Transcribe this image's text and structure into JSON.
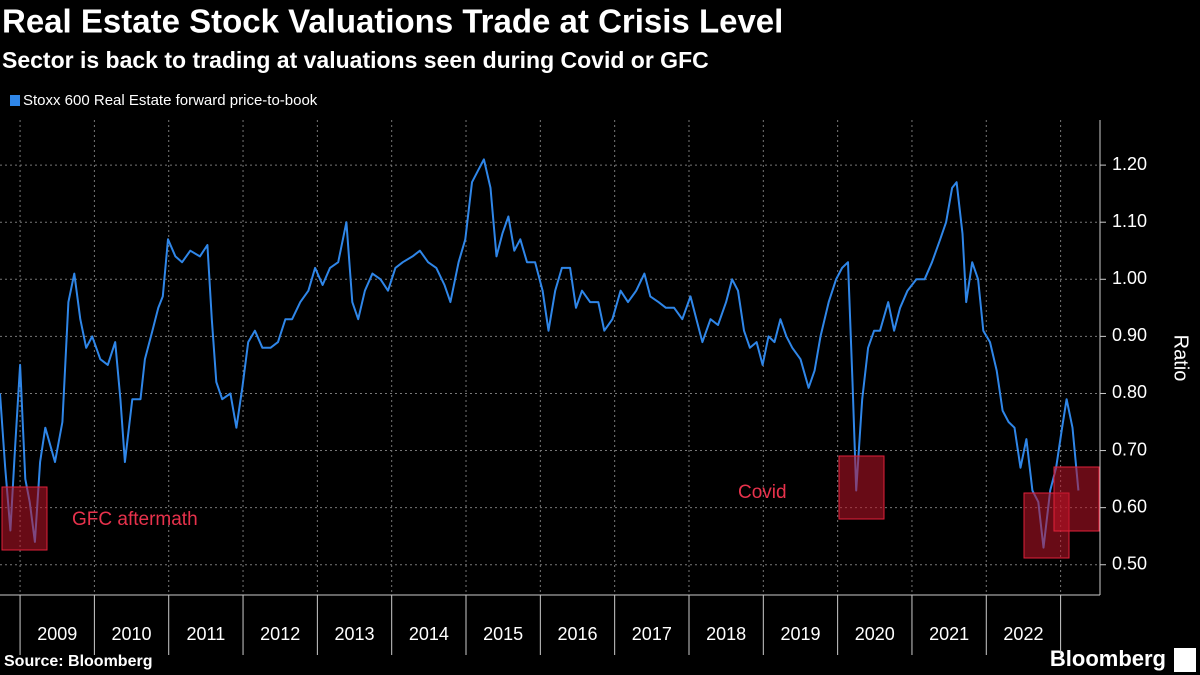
{
  "chart_data": {
    "type": "line",
    "title": "Real Estate Stock Valuations Trade at Crisis Level",
    "subtitle": "Sector is back to trading at valuations seen during Covid or GFC",
    "y_label": "Ratio",
    "source": "Source: Bloomberg",
    "brand": "Bloomberg",
    "annotations": [
      "GFC aftermath",
      "Covid"
    ],
    "x": [
      2008.73,
      2008.8,
      2008.87,
      2008.93,
      2009.0,
      2009.07,
      2009.13,
      2009.2,
      2009.27,
      2009.34,
      2009.47,
      2009.57,
      2009.65,
      2009.73,
      2009.81,
      2009.89,
      2009.97,
      2010.08,
      2010.18,
      2010.28,
      2010.35,
      2010.41,
      2010.51,
      2010.62,
      2010.68,
      2010.78,
      2010.86,
      2010.92,
      2010.99,
      2011.09,
      2011.18,
      2011.29,
      2011.42,
      2011.52,
      2011.58,
      2011.64,
      2011.72,
      2011.83,
      2011.91,
      2011.99,
      2012.07,
      2012.16,
      2012.26,
      2012.37,
      2012.47,
      2012.57,
      2012.66,
      2012.77,
      2012.88,
      2012.97,
      2013.07,
      2013.17,
      2013.28,
      2013.39,
      2013.47,
      2013.55,
      2013.64,
      2013.74,
      2013.85,
      2013.95,
      2014.05,
      2014.15,
      2014.28,
      2014.38,
      2014.49,
      2014.6,
      2014.71,
      2014.79,
      2014.9,
      2014.99,
      2015.08,
      2015.16,
      2015.24,
      2015.33,
      2015.41,
      2015.49,
      2015.57,
      2015.65,
      2015.73,
      2015.82,
      2015.93,
      2016.03,
      2016.11,
      2016.2,
      2016.29,
      2016.4,
      2016.48,
      2016.56,
      2016.67,
      2016.78,
      2016.86,
      2016.97,
      2017.08,
      2017.18,
      2017.29,
      2017.4,
      2017.48,
      2017.59,
      2017.69,
      2017.8,
      2017.91,
      2018.02,
      2018.1,
      2018.18,
      2018.29,
      2018.39,
      2018.5,
      2018.58,
      2018.66,
      2018.74,
      2018.82,
      2018.91,
      2018.99,
      2019.07,
      2019.15,
      2019.23,
      2019.31,
      2019.39,
      2019.5,
      2019.61,
      2019.69,
      2019.77,
      2019.88,
      2019.98,
      2020.06,
      2020.14,
      2020.2,
      2020.25,
      2020.33,
      2020.41,
      2020.49,
      2020.57,
      2020.68,
      2020.76,
      2020.84,
      2020.94,
      2021.06,
      2021.17,
      2021.27,
      2021.38,
      2021.46,
      2021.54,
      2021.6,
      2021.68,
      2021.73,
      2021.81,
      2021.89,
      2021.96,
      2022.05,
      2022.14,
      2022.22,
      2022.3,
      2022.38,
      2022.46,
      2022.54,
      2022.62,
      2022.7,
      2022.77,
      2022.86,
      2022.94,
      2023.02,
      2023.08,
      2023.16,
      2023.24
    ],
    "series": [
      {
        "name": "Stoxx 600 Real Estate forward price-to-book",
        "color": "#2f86e8",
        "values": [
          0.8,
          0.67,
          0.56,
          0.7,
          0.85,
          0.65,
          0.61,
          0.54,
          0.68,
          0.74,
          0.68,
          0.75,
          0.96,
          1.01,
          0.93,
          0.88,
          0.9,
          0.86,
          0.85,
          0.89,
          0.79,
          0.68,
          0.79,
          0.79,
          0.86,
          0.91,
          0.95,
          0.97,
          1.07,
          1.04,
          1.03,
          1.05,
          1.04,
          1.06,
          0.93,
          0.82,
          0.79,
          0.8,
          0.74,
          0.81,
          0.89,
          0.91,
          0.88,
          0.88,
          0.89,
          0.93,
          0.93,
          0.96,
          0.98,
          1.02,
          0.99,
          1.02,
          1.03,
          1.1,
          0.96,
          0.93,
          0.98,
          1.01,
          1.0,
          0.98,
          1.02,
          1.03,
          1.04,
          1.05,
          1.03,
          1.02,
          0.99,
          0.96,
          1.03,
          1.07,
          1.17,
          1.19,
          1.21,
          1.16,
          1.04,
          1.08,
          1.11,
          1.05,
          1.07,
          1.03,
          1.03,
          0.98,
          0.91,
          0.98,
          1.02,
          1.02,
          0.95,
          0.98,
          0.96,
          0.96,
          0.91,
          0.93,
          0.98,
          0.96,
          0.98,
          1.01,
          0.97,
          0.96,
          0.95,
          0.95,
          0.93,
          0.97,
          0.93,
          0.89,
          0.93,
          0.92,
          0.96,
          1.0,
          0.98,
          0.91,
          0.88,
          0.89,
          0.85,
          0.9,
          0.89,
          0.93,
          0.9,
          0.88,
          0.86,
          0.81,
          0.84,
          0.9,
          0.96,
          1.0,
          1.02,
          1.03,
          0.82,
          0.63,
          0.79,
          0.88,
          0.91,
          0.91,
          0.96,
          0.91,
          0.95,
          0.98,
          1.0,
          1.0,
          1.03,
          1.07,
          1.1,
          1.16,
          1.17,
          1.08,
          0.96,
          1.03,
          1.0,
          0.91,
          0.89,
          0.84,
          0.77,
          0.75,
          0.74,
          0.67,
          0.72,
          0.63,
          0.61,
          0.53,
          0.63,
          0.67,
          0.74,
          0.79,
          0.74,
          0.63
        ]
      }
    ],
    "xlim": [
      2008.73,
      2023.53
    ],
    "xticks": [
      2009,
      2010,
      2011,
      2012,
      2013,
      2014,
      2015,
      2016,
      2017,
      2018,
      2019,
      2020,
      2021,
      2022
    ],
    "ylim": [
      0.447,
      1.279
    ],
    "yticks": [
      {
        "value": 1.2,
        "label": "1.20"
      },
      {
        "value": 1.1,
        "label": "1.10"
      },
      {
        "value": 1.0,
        "label": "1.00"
      },
      {
        "value": 0.9,
        "label": "0.90"
      },
      {
        "value": 0.8,
        "label": "0.80"
      },
      {
        "value": 0.7,
        "label": "0.70"
      },
      {
        "value": 0.6,
        "label": "0.60"
      },
      {
        "value": 0.5,
        "label": "0.50"
      }
    ],
    "grid": true
  }
}
